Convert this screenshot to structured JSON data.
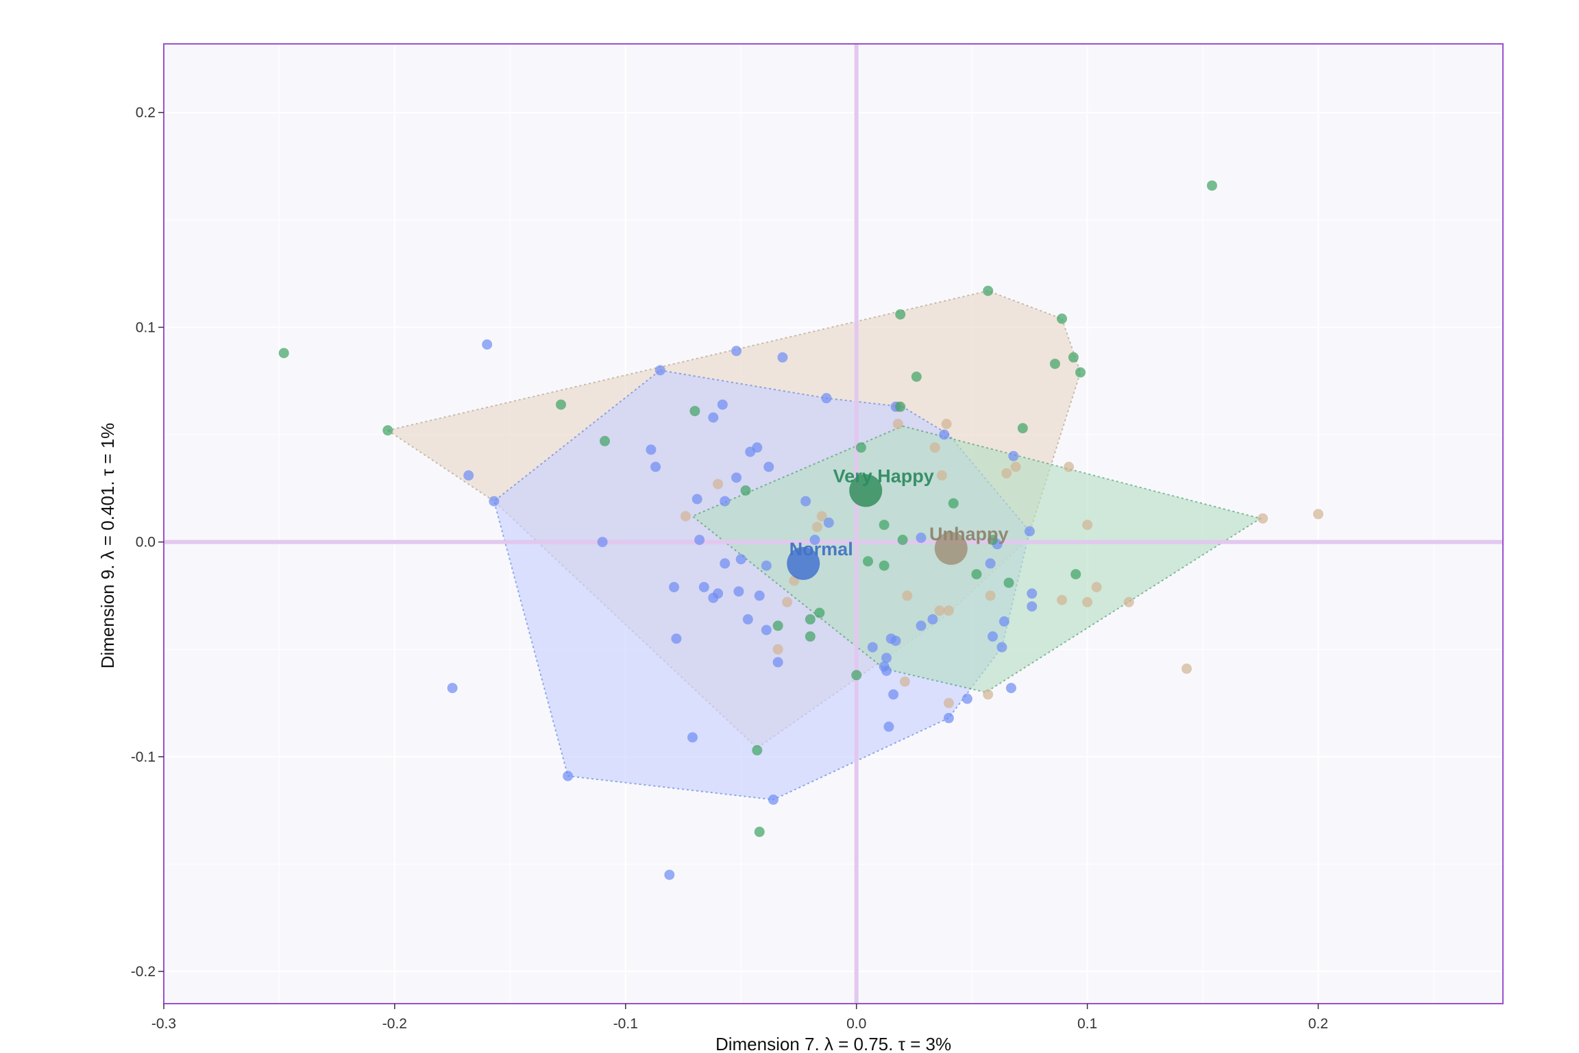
{
  "chart_data": {
    "type": "scatter",
    "title": "",
    "xlabel": "Dimension 7.   λ = 0.75.  τ = 3%",
    "ylabel": "Dimension 9.   λ = 0.401.  τ = 1%",
    "xlim": [
      -0.3,
      0.28
    ],
    "ylim": [
      -0.215,
      0.232
    ],
    "x_ticks": [
      -0.3,
      -0.2,
      -0.1,
      0.0,
      0.1,
      0.2
    ],
    "x_tick_labels": [
      "-0.3",
      "-0.2",
      "-0.1",
      "0.0",
      "0.1",
      "0.2"
    ],
    "y_ticks": [
      0.2,
      0.1,
      0.0,
      -0.1,
      -0.2
    ],
    "y_tick_labels": [
      "0.2",
      "0.1",
      "0.0",
      "-0.1",
      "-0.2"
    ],
    "grid": true,
    "reference_lines": {
      "x": 0,
      "y": 0
    },
    "colors": {
      "panel_background": "#f8f8fc",
      "panel_border": "#9c4fd0",
      "reference_line": "#e2c8ee",
      "grid": "#ffffff"
    },
    "series": [
      {
        "name": "Unhappy",
        "color": "#a08f76",
        "label_color": "#8e8470",
        "point_color": "#d2b493",
        "hull_fill": "#e8d8c8",
        "centroid": [
          0.041,
          -0.003
        ],
        "hull": [
          [
            -0.203,
            0.052
          ],
          [
            0.057,
            0.117
          ],
          [
            0.089,
            0.104
          ],
          [
            0.097,
            0.079
          ],
          [
            0.074,
            0.001
          ],
          [
            0.038,
            -0.035
          ],
          [
            -0.043,
            -0.096
          ],
          [
            -0.157,
            0.019
          ]
        ],
        "points": [
          [
            0.039,
            0.055
          ],
          [
            0.018,
            0.063
          ],
          [
            0.018,
            0.055
          ],
          [
            0.034,
            0.044
          ],
          [
            0.037,
            0.031
          ],
          [
            0.069,
            0.035
          ],
          [
            0.092,
            0.035
          ],
          [
            0.065,
            0.032
          ],
          [
            0.1,
            0.008
          ],
          [
            0.176,
            0.011
          ],
          [
            0.2,
            0.013
          ],
          [
            -0.06,
            0.027
          ],
          [
            -0.074,
            0.012
          ],
          [
            -0.015,
            0.012
          ],
          [
            -0.017,
            0.007
          ],
          [
            -0.027,
            -0.018
          ],
          [
            -0.03,
            -0.028
          ],
          [
            0.022,
            -0.025
          ],
          [
            0.058,
            -0.025
          ],
          [
            0.089,
            -0.027
          ],
          [
            0.1,
            -0.028
          ],
          [
            0.104,
            -0.021
          ],
          [
            0.118,
            -0.028
          ],
          [
            0.143,
            -0.059
          ],
          [
            0.04,
            -0.075
          ],
          [
            0.057,
            -0.071
          ],
          [
            0.021,
            -0.065
          ],
          [
            -0.034,
            -0.05
          ],
          [
            0.04,
            -0.032
          ],
          [
            0.036,
            -0.032
          ]
        ]
      },
      {
        "name": "Normal",
        "color": "#3f6fd0",
        "label_color": "#4472c4",
        "point_color": "#6e8cf4",
        "hull_fill": "#c8d0ff",
        "centroid": [
          -0.023,
          -0.01
        ],
        "hull": [
          [
            -0.085,
            0.08
          ],
          [
            -0.013,
            0.067
          ],
          [
            0.02,
            0.063
          ],
          [
            0.04,
            0.05
          ],
          [
            0.075,
            0.005
          ],
          [
            0.063,
            -0.049
          ],
          [
            0.04,
            -0.082
          ],
          [
            -0.036,
            -0.12
          ],
          [
            -0.125,
            -0.109
          ],
          [
            -0.157,
            0.019
          ]
        ],
        "points": [
          [
            -0.16,
            0.092
          ],
          [
            -0.052,
            0.089
          ],
          [
            -0.032,
            0.086
          ],
          [
            -0.085,
            0.08
          ],
          [
            -0.013,
            0.067
          ],
          [
            0.017,
            0.063
          ],
          [
            -0.058,
            0.064
          ],
          [
            -0.062,
            0.058
          ],
          [
            -0.043,
            0.044
          ],
          [
            -0.046,
            0.042
          ],
          [
            -0.089,
            0.043
          ],
          [
            -0.087,
            0.035
          ],
          [
            -0.038,
            0.035
          ],
          [
            -0.052,
            0.03
          ],
          [
            -0.069,
            0.02
          ],
          [
            -0.057,
            0.019
          ],
          [
            -0.168,
            0.031
          ],
          [
            -0.157,
            0.019
          ],
          [
            -0.022,
            0.019
          ],
          [
            -0.012,
            0.009
          ],
          [
            -0.018,
            0.001
          ],
          [
            0.028,
            0.002
          ],
          [
            -0.068,
            0.001
          ],
          [
            -0.11,
            0.0
          ],
          [
            0.075,
            0.005
          ],
          [
            0.061,
            -0.001
          ],
          [
            -0.05,
            -0.008
          ],
          [
            -0.057,
            -0.01
          ],
          [
            -0.039,
            -0.011
          ],
          [
            0.058,
            -0.01
          ],
          [
            -0.079,
            -0.021
          ],
          [
            -0.066,
            -0.021
          ],
          [
            -0.051,
            -0.023
          ],
          [
            -0.06,
            -0.024
          ],
          [
            -0.062,
            -0.026
          ],
          [
            -0.042,
            -0.025
          ],
          [
            0.076,
            -0.024
          ],
          [
            0.076,
            -0.03
          ],
          [
            -0.047,
            -0.036
          ],
          [
            0.064,
            -0.037
          ],
          [
            -0.039,
            -0.041
          ],
          [
            0.033,
            -0.036
          ],
          [
            0.028,
            -0.039
          ],
          [
            -0.078,
            -0.045
          ],
          [
            0.015,
            -0.045
          ],
          [
            0.017,
            -0.046
          ],
          [
            0.059,
            -0.044
          ],
          [
            0.007,
            -0.049
          ],
          [
            0.063,
            -0.049
          ],
          [
            -0.034,
            -0.056
          ],
          [
            0.013,
            -0.054
          ],
          [
            0.012,
            -0.058
          ],
          [
            0.013,
            -0.06
          ],
          [
            0.067,
            -0.068
          ],
          [
            0.016,
            -0.071
          ],
          [
            0.048,
            -0.073
          ],
          [
            -0.175,
            -0.068
          ],
          [
            0.04,
            -0.082
          ],
          [
            0.014,
            -0.086
          ],
          [
            -0.071,
            -0.091
          ],
          [
            -0.125,
            -0.109
          ],
          [
            -0.036,
            -0.12
          ],
          [
            -0.081,
            -0.155
          ],
          [
            0.038,
            0.05
          ],
          [
            0.068,
            0.04
          ]
        ]
      },
      {
        "name": "Very Happy",
        "color": "#2e8b57",
        "label_color": "#2e8b63",
        "point_color": "#3da262",
        "hull_fill": "#b6dfc4",
        "centroid": [
          0.004,
          0.024
        ],
        "hull": [
          [
            0.02,
            0.054
          ],
          [
            0.175,
            0.011
          ],
          [
            0.056,
            -0.07
          ],
          [
            0.012,
            -0.059
          ],
          [
            -0.071,
            0.012
          ]
        ],
        "points": [
          [
            0.154,
            0.166
          ],
          [
            -0.248,
            0.088
          ],
          [
            -0.203,
            0.052
          ],
          [
            0.057,
            0.117
          ],
          [
            0.019,
            0.106
          ],
          [
            0.089,
            0.104
          ],
          [
            0.094,
            0.086
          ],
          [
            0.086,
            0.083
          ],
          [
            0.097,
            0.079
          ],
          [
            0.026,
            0.077
          ],
          [
            -0.128,
            0.064
          ],
          [
            -0.07,
            0.061
          ],
          [
            0.019,
            0.063
          ],
          [
            0.072,
            0.053
          ],
          [
            -0.109,
            0.047
          ],
          [
            0.002,
            0.044
          ],
          [
            -0.048,
            0.024
          ],
          [
            0.042,
            0.018
          ],
          [
            0.012,
            0.008
          ],
          [
            0.02,
            0.001
          ],
          [
            0.059,
            0.001
          ],
          [
            0.005,
            -0.009
          ],
          [
            0.012,
            -0.011
          ],
          [
            0.052,
            -0.015
          ],
          [
            0.095,
            -0.015
          ],
          [
            0.066,
            -0.019
          ],
          [
            -0.016,
            -0.033
          ],
          [
            -0.02,
            -0.036
          ],
          [
            -0.034,
            -0.039
          ],
          [
            -0.02,
            -0.044
          ],
          [
            0.0,
            -0.062
          ],
          [
            -0.043,
            -0.097
          ],
          [
            -0.042,
            -0.135
          ]
        ]
      }
    ]
  }
}
